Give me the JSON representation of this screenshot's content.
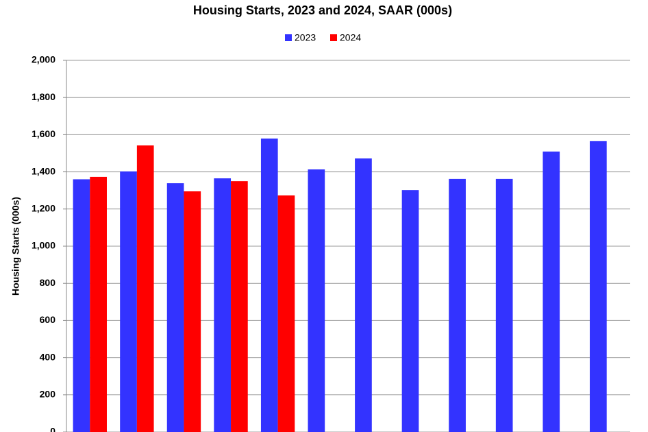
{
  "chart_data": {
    "type": "bar",
    "title": "Housing Starts,  2023 and 2024, SAAR (000s)",
    "y_label": "Housing Starts (000s)",
    "categories": [
      null,
      null,
      null,
      null,
      null,
      null,
      null,
      null,
      null,
      null,
      null,
      null
    ],
    "series": [
      {
        "name": "2023",
        "color": "#3333ff",
        "values": [
          1360,
          1402,
          1339,
          1365,
          1579,
          1413,
          1472,
          1302,
          1362,
          1362,
          1509,
          1565
        ]
      },
      {
        "name": "2024",
        "color": "#ff0000",
        "values": [
          1373,
          1542,
          1295,
          1350,
          1273,
          null,
          null,
          null,
          null,
          null,
          null,
          null
        ]
      }
    ],
    "ylim": [
      0,
      2000
    ],
    "yticks": [
      0,
      200,
      400,
      600,
      800,
      {
        "value": 1000,
        "label": "1,000"
      },
      {
        "value": 1200,
        "label": "1,200"
      },
      {
        "value": 1400,
        "label": "1,400"
      },
      {
        "value": 1600,
        "label": "1,600"
      },
      {
        "value": 1800,
        "label": "1,800"
      },
      {
        "value": 2000,
        "label": "2,000"
      }
    ],
    "grid": true,
    "legend": "top"
  }
}
